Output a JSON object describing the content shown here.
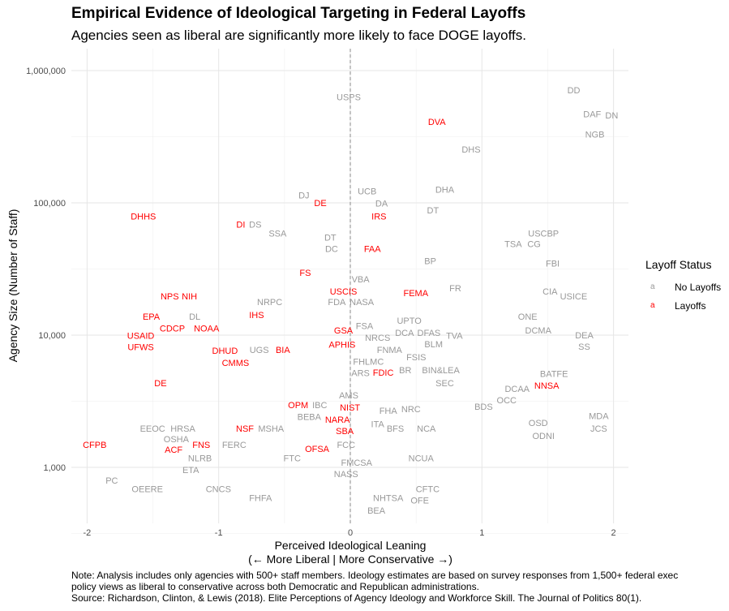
{
  "chart_data": {
    "type": "scatter",
    "title": "Empirical Evidence of Ideological Targeting in Federal Layoffs",
    "subtitle": "Agencies seen as liberal are significantly more likely to face DOGE layoffs.",
    "xlabel": "Perceived Ideological Leaning",
    "xlabel2": "(← More Liberal | More Conservative →)",
    "ylabel": "Agency Size (Number of Staff)",
    "x_ticks": [
      "-2",
      "-1",
      "0",
      "1",
      "2"
    ],
    "y_ticks": [
      "1,000",
      "10,000",
      "100,000",
      "1,000,000"
    ],
    "y_scale": "log",
    "xlim": [
      -2.1,
      2.1
    ],
    "ylim": [
      420,
      1300000
    ],
    "grid": true,
    "reference_line": {
      "x": 0,
      "style": "dashed"
    },
    "legend": {
      "title": "Layoff Status",
      "placement": "right",
      "items": [
        {
          "key": "a",
          "label": "No Layoffs",
          "color": "#999999"
        },
        {
          "key": "a",
          "label": "Layoffs",
          "color": "#ff0000"
        }
      ]
    },
    "colors": {
      "no_layoffs": "#999999",
      "layoffs": "#ff0000"
    },
    "note": [
      "Note: Analysis includes only agencies with 500+ staff members. Ideology estimates are based on survey responses from 1,500+ federal exec",
      "policy views as liberal to conservative across both Democratic and Republican administrations.",
      "Source: Richardson, Clinton, & Lewis (2018). Elite Perceptions of Agency Ideology and Workforce Skill. The Journal of Politics 80(1)."
    ],
    "points": [
      {
        "label": "USPS",
        "x": 0.0,
        "staff": 630000,
        "layoffs": false
      },
      {
        "label": "DD",
        "x": 1.71,
        "staff": 710000,
        "layoffs": false
      },
      {
        "label": "DAF",
        "x": 1.85,
        "staff": 470000,
        "layoffs": false
      },
      {
        "label": "DN",
        "x": 1.9,
        "staff": 460000,
        "layoffs": false
      },
      {
        "label": "NGB",
        "x": 1.87,
        "staff": 330000,
        "layoffs": false
      },
      {
        "label": "DHS",
        "x": 0.93,
        "staff": 254000,
        "layoffs": false
      },
      {
        "label": "DHA",
        "x": 0.73,
        "staff": 126000,
        "layoffs": false
      },
      {
        "label": "UCB",
        "x": 0.14,
        "staff": 123000,
        "layoffs": false
      },
      {
        "label": "DJ",
        "x": -0.34,
        "staff": 114000,
        "layoffs": false
      },
      {
        "label": "DA",
        "x": 0.25,
        "staff": 99000,
        "layoffs": false
      },
      {
        "label": "DT",
        "x": 0.64,
        "staff": 88000,
        "layoffs": false
      },
      {
        "label": "DS",
        "x": -0.71,
        "staff": 69000,
        "layoffs": false
      },
      {
        "label": "SSA",
        "x": -0.54,
        "staff": 59000,
        "layoffs": false
      },
      {
        "label": "USCBP",
        "x": 1.48,
        "staff": 59000,
        "layoffs": false
      },
      {
        "label": "DT",
        "x": -0.14,
        "staff": 55000,
        "layoffs": false
      },
      {
        "label": "TSA",
        "x": 1.25,
        "staff": 49000,
        "layoffs": false
      },
      {
        "label": "CG",
        "x": 1.31,
        "staff": 49000,
        "layoffs": false
      },
      {
        "label": "DC",
        "x": -0.13,
        "staff": 45000,
        "layoffs": false
      },
      {
        "label": "BP",
        "x": 0.62,
        "staff": 36500,
        "layoffs": false
      },
      {
        "label": "FBI",
        "x": 1.55,
        "staff": 35000,
        "layoffs": false
      },
      {
        "label": "VBA",
        "x": 0.09,
        "staff": 26500,
        "layoffs": false
      },
      {
        "label": "FR",
        "x": 0.81,
        "staff": 22700,
        "layoffs": false
      },
      {
        "label": "CIA",
        "x": 1.53,
        "staff": 21500,
        "layoffs": false
      },
      {
        "label": "USICE",
        "x": 1.66,
        "staff": 19700,
        "layoffs": false
      },
      {
        "label": "NRPC",
        "x": -0.6,
        "staff": 17800,
        "layoffs": false
      },
      {
        "label": "FDA",
        "x": -0.09,
        "staff": 17800,
        "layoffs": false
      },
      {
        "label": "NASA",
        "x": 0.05,
        "staff": 17800,
        "layoffs": false
      },
      {
        "label": "DL",
        "x": -1.17,
        "staff": 13800,
        "layoffs": false
      },
      {
        "label": "ONE",
        "x": 1.36,
        "staff": 13800,
        "layoffs": false
      },
      {
        "label": "UPTO",
        "x": 0.46,
        "staff": 12900,
        "layoffs": false
      },
      {
        "label": "FSA",
        "x": 0.12,
        "staff": 11800,
        "layoffs": false
      },
      {
        "label": "NRCS",
        "x": 0.22,
        "staff": 10900,
        "layoffs": false
      },
      {
        "label": "DCA",
        "x": 0.35,
        "staff": 10900,
        "layoffs": false
      },
      {
        "label": "DFAS",
        "x": 0.56,
        "staff": 10900,
        "layoffs": false
      },
      {
        "label": "DCMA",
        "x": 1.44,
        "staff": 10900,
        "layoffs": false
      },
      {
        "label": "TVA",
        "x": 0.68,
        "staff": 9900,
        "layoffs": false
      },
      {
        "label": "DEA",
        "x": 1.79,
        "staff": 10000,
        "layoffs": false
      },
      {
        "label": "BLM",
        "x": 0.67,
        "staff": 8900,
        "layoffs": false
      },
      {
        "label": "SS",
        "x": 1.79,
        "staff": 8200,
        "layoffs": false
      },
      {
        "label": "UGS",
        "x": -0.68,
        "staff": 7750,
        "layoffs": false
      },
      {
        "label": "FNMA",
        "x": 0.31,
        "staff": 7750,
        "layoffs": false
      },
      {
        "label": "FSIS",
        "x": 0.39,
        "staff": 7750,
        "layoffs": false
      },
      {
        "label": "FHLMC",
        "x": 0.15,
        "staff": 6900,
        "layoffs": false
      },
      {
        "label": "ARS",
        "x": 0.09,
        "staff": 5900,
        "layoffs": false
      },
      {
        "label": "BR",
        "x": 0.43,
        "staff": 5450,
        "layoffs": false
      },
      {
        "label": "BIN&LEA",
        "x": 0.7,
        "staff": 5450,
        "layoffs": false
      },
      {
        "label": "SEC",
        "x": 0.73,
        "staff": 4940,
        "layoffs": false
      },
      {
        "label": "BATFE",
        "x": 1.56,
        "staff": 5100,
        "layoffs": false
      },
      {
        "label": "DCAA",
        "x": 1.28,
        "staff": 3930,
        "layoffs": false
      },
      {
        "label": "OCC",
        "x": 1.2,
        "staff": 3370,
        "layoffs": false
      },
      {
        "label": "BDS",
        "x": 1.05,
        "staff": 2880,
        "layoffs": false
      },
      {
        "label": "AMS",
        "x": 0.0,
        "staff": 3520,
        "layoffs": false
      },
      {
        "label": "IBC",
        "x": -0.22,
        "staff": 2960,
        "layoffs": false
      },
      {
        "label": "FHA",
        "x": 0.3,
        "staff": 2690,
        "layoffs": false
      },
      {
        "label": "NRC",
        "x": 0.35,
        "staff": 2770,
        "layoffs": false
      },
      {
        "label": "BEBA",
        "x": -0.3,
        "staff": 2520,
        "layoffs": false
      },
      {
        "label": "MDA",
        "x": 1.9,
        "staff": 2460,
        "layoffs": false
      },
      {
        "label": "MSHA",
        "x": -0.59,
        "staff": 1970,
        "layoffs": false
      },
      {
        "label": "EEOC",
        "x": -1.49,
        "staff": 1970,
        "layoffs": false
      },
      {
        "label": "HRSA",
        "x": -1.26,
        "staff": 1970,
        "layoffs": false
      },
      {
        "label": "ITA",
        "x": 0.22,
        "staff": 2130,
        "layoffs": false
      },
      {
        "label": "BFS",
        "x": 0.33,
        "staff": 1970,
        "layoffs": false
      },
      {
        "label": "NCA",
        "x": 0.59,
        "staff": 1970,
        "layoffs": false
      },
      {
        "label": "JCS",
        "x": 1.9,
        "staff": 1970,
        "layoffs": false
      },
      {
        "label": "OSD",
        "x": 1.44,
        "staff": 2180,
        "layoffs": false
      },
      {
        "label": "OSHA",
        "x": -1.31,
        "staff": 1780,
        "layoffs": false
      },
      {
        "label": "ODNI",
        "x": 1.48,
        "staff": 1740,
        "layoffs": false
      },
      {
        "label": "FERC",
        "x": -0.87,
        "staff": 1480,
        "layoffs": false
      },
      {
        "label": "FCC",
        "x": -0.02,
        "staff": 1480,
        "layoffs": false
      },
      {
        "label": "NLRB",
        "x": -1.13,
        "staff": 1180,
        "layoffs": false
      },
      {
        "label": "FTC",
        "x": -0.43,
        "staff": 1180,
        "layoffs": false
      },
      {
        "label": "NCUA",
        "x": 0.55,
        "staff": 1180,
        "layoffs": false
      },
      {
        "label": "FMCSA",
        "x": 0.06,
        "staff": 1090,
        "layoffs": false
      },
      {
        "label": "ETA",
        "x": -1.2,
        "staff": 1000,
        "layoffs": false
      },
      {
        "label": "NASS",
        "x": -0.02,
        "staff": 890,
        "layoffs": false
      },
      {
        "label": "PC",
        "x": -1.8,
        "staff": 800,
        "layoffs": false
      },
      {
        "label": "OEERE",
        "x": -1.53,
        "staff": 690,
        "layoffs": false
      },
      {
        "label": "CNCS",
        "x": -0.99,
        "staff": 690,
        "layoffs": false
      },
      {
        "label": "CFTC",
        "x": 0.6,
        "staff": 690,
        "layoffs": false
      },
      {
        "label": "FHFA",
        "x": -0.67,
        "staff": 590,
        "layoffs": false
      },
      {
        "label": "NHTSA",
        "x": 0.3,
        "staff": 590,
        "layoffs": false
      },
      {
        "label": "OFE",
        "x": 0.54,
        "staff": 590,
        "layoffs": false
      },
      {
        "label": "BEA",
        "x": 0.21,
        "staff": 560,
        "layoffs": false
      },
      {
        "label": "DVA",
        "x": 0.67,
        "staff": 410000,
        "layoffs": true
      },
      {
        "label": "DE",
        "x": -0.24,
        "staff": 100000,
        "layoffs": true
      },
      {
        "label": "IRS",
        "x": 0.23,
        "staff": 86000,
        "layoffs": true
      },
      {
        "label": "DHHS",
        "x": -1.56,
        "staff": 79000,
        "layoffs": true
      },
      {
        "label": "DI",
        "x": -0.82,
        "staff": 69000,
        "layoffs": true
      },
      {
        "label": "FAA",
        "x": 0.18,
        "staff": 45000,
        "layoffs": true
      },
      {
        "label": "FS",
        "x": -0.33,
        "staff": 29600,
        "layoffs": true
      },
      {
        "label": "FEMA",
        "x": 0.51,
        "staff": 20900,
        "layoffs": true
      },
      {
        "label": "NPS",
        "x": -1.36,
        "staff": 19700,
        "layoffs": true
      },
      {
        "label": "NIH",
        "x": -1.21,
        "staff": 19700,
        "layoffs": true
      },
      {
        "label": "USCIS",
        "x": -0.04,
        "staff": 18900,
        "layoffs": true
      },
      {
        "label": "IHS",
        "x": -0.7,
        "staff": 14900,
        "layoffs": true
      },
      {
        "label": "EPA",
        "x": -1.5,
        "staff": 13800,
        "layoffs": true
      },
      {
        "label": "CDCP",
        "x": -1.34,
        "staff": 11800,
        "layoffs": true
      },
      {
        "label": "NOAA",
        "x": -1.08,
        "staff": 11800,
        "layoffs": true
      },
      {
        "label": "GSA",
        "x": -0.04,
        "staff": 10900,
        "layoffs": true
      },
      {
        "label": "USAID",
        "x": -1.58,
        "staff": 9900,
        "layoffs": true
      },
      {
        "label": "UFWS",
        "x": -1.58,
        "staff": 8500,
        "layoffs": true
      },
      {
        "label": "APHIS",
        "x": -0.05,
        "staff": 8500,
        "layoffs": true
      },
      {
        "label": "BIA",
        "x": -0.5,
        "staff": 7750,
        "layoffs": true
      },
      {
        "label": "DHUD",
        "x": -0.94,
        "staff": 7650,
        "layoffs": true
      },
      {
        "label": "CMMS",
        "x": -0.86,
        "staff": 6450,
        "layoffs": true
      },
      {
        "label": "FDIC",
        "x": 0.09,
        "staff": 5450,
        "layoffs": true
      },
      {
        "label": "NNSA",
        "x": 1.48,
        "staff": 4940,
        "layoffs": true
      },
      {
        "label": "DE",
        "x": -1.43,
        "staff": 4360,
        "layoffs": true
      },
      {
        "label": "NIST",
        "x": 0.01,
        "staff": 3370,
        "layoffs": true
      },
      {
        "label": "OPM",
        "x": -0.31,
        "staff": 2960,
        "layoffs": true
      },
      {
        "label": "NARA",
        "x": -0.11,
        "staff": 2960,
        "layoffs": true
      },
      {
        "label": "NSF",
        "x": -0.69,
        "staff": 1970,
        "layoffs": true
      },
      {
        "label": "SBA",
        "x": -0.03,
        "staff": 1970,
        "layoffs": true
      },
      {
        "label": "CFPB",
        "x": -1.93,
        "staff": 1480,
        "layoffs": true
      },
      {
        "label": "ACF",
        "x": -1.33,
        "staff": 1480,
        "layoffs": true
      },
      {
        "label": "FNS",
        "x": -1.12,
        "staff": 1480,
        "layoffs": true
      },
      {
        "label": "OFSA",
        "x": -0.24,
        "staff": 1380,
        "layoffs": true
      }
    ]
  }
}
